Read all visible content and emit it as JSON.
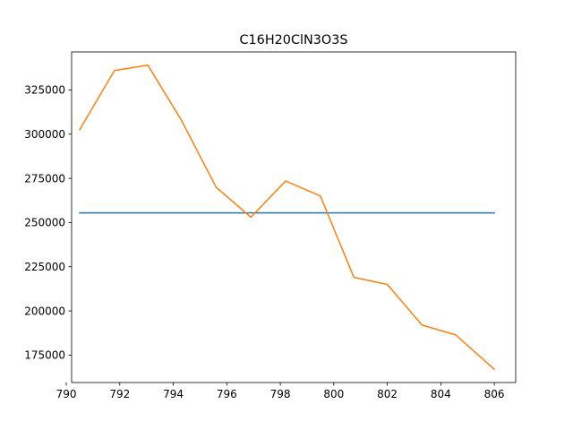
{
  "chart_data": {
    "type": "line",
    "title": "C16H20ClN3O3S",
    "xlabel": "",
    "ylabel": "",
    "xlim": [
      790.2,
      806.8
    ],
    "ylim": [
      159500,
      346500
    ],
    "xticks": [
      790,
      792,
      794,
      796,
      798,
      800,
      802,
      804,
      806
    ],
    "yticks": [
      175000,
      200000,
      225000,
      250000,
      275000,
      300000,
      325000
    ],
    "grid": false,
    "series": [
      {
        "color": "#1f77b4",
        "x": [
          790.5,
          806.0
        ],
        "y": [
          255500,
          255500
        ]
      },
      {
        "color": "#ff7f0e",
        "x": [
          790.5,
          791.8,
          793.05,
          794.3,
          795.6,
          796.9,
          798.2,
          799.5,
          800.75,
          802.0,
          803.3,
          804.55,
          806.0
        ],
        "y": [
          302500,
          336000,
          339000,
          308000,
          270000,
          253000,
          273500,
          265000,
          219000,
          215000,
          192000,
          186500,
          167000
        ]
      }
    ]
  }
}
